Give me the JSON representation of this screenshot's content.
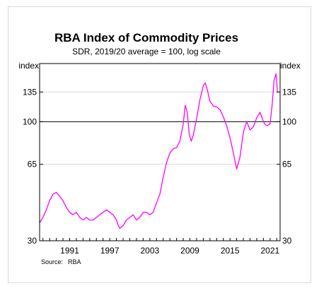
{
  "chart_data": {
    "type": "line",
    "title": "RBA Index of Commodity Prices",
    "subtitle": "SDR, 2019/20 average = 100, log scale",
    "ylabel_left": "index",
    "ylabel_right": "index",
    "source_label": "Source:",
    "source_value": "RBA",
    "yscale": "log",
    "ylim": [
      30,
      180
    ],
    "xlim": [
      1986.5,
      2022.5
    ],
    "y_ticks": [
      30,
      65,
      100,
      135
    ],
    "y_tick_labels": [
      "30",
      "65",
      "100",
      "135"
    ],
    "x_ticks": [
      1991,
      1997,
      2003,
      2009,
      2015,
      2021
    ],
    "x_tick_labels": [
      "1991",
      "1997",
      "2003",
      "2009",
      "2015",
      "2021"
    ],
    "reference_line": 100,
    "line_color": "#ff00ff",
    "grid": "horizontal",
    "series": [
      {
        "x": [
          1986.5,
          1987.0,
          1987.5,
          1988.0,
          1988.5,
          1989.0,
          1989.5,
          1990.0,
          1990.5,
          1991.0,
          1991.5,
          1992.0,
          1992.5,
          1993.0,
          1993.5,
          1994.0,
          1994.5,
          1995.0,
          1995.5,
          1996.0,
          1996.5,
          1997.0,
          1997.5,
          1998.0,
          1998.3,
          1998.5,
          1999.0,
          1999.5,
          2000.0,
          2000.5,
          2001.0,
          2001.5,
          2002.0,
          2002.5,
          2003.0,
          2003.5,
          2004.0,
          2004.5,
          2005.0,
          2005.5,
          2006.0,
          2006.5,
          2007.0,
          2007.5,
          2008.0,
          2008.3,
          2008.6,
          2008.9,
          2009.2,
          2009.5,
          2010.0,
          2010.5,
          2011.0,
          2011.3,
          2011.6,
          2012.0,
          2012.5,
          2013.0,
          2013.5,
          2014.0,
          2014.5,
          2015.0,
          2015.5,
          2015.8,
          2016.0,
          2016.5,
          2017.0,
          2017.5,
          2018.0,
          2018.5,
          2019.0,
          2019.5,
          2020.0,
          2020.3,
          2020.6,
          2021.0,
          2021.3,
          2021.6,
          2021.9,
          2022.1
        ],
        "y": [
          36,
          38,
          41,
          45,
          48,
          49,
          47,
          45,
          42,
          40,
          39,
          40,
          38,
          37,
          38,
          37,
          37,
          38,
          39,
          40,
          41,
          40,
          39,
          37,
          35,
          34,
          35,
          37,
          38,
          39,
          37,
          38,
          40,
          40,
          39,
          40,
          44,
          48,
          57,
          66,
          73,
          76,
          77,
          82,
          98,
          118,
          110,
          88,
          82,
          87,
          103,
          125,
          144,
          148,
          138,
          123,
          117,
          116,
          113,
          105,
          96,
          85,
          73,
          66,
          62,
          70,
          90,
          100,
          92,
          95,
          104,
          110,
          100,
          97,
          96,
          98,
          118,
          152,
          162,
          135
        ]
      }
    ]
  }
}
